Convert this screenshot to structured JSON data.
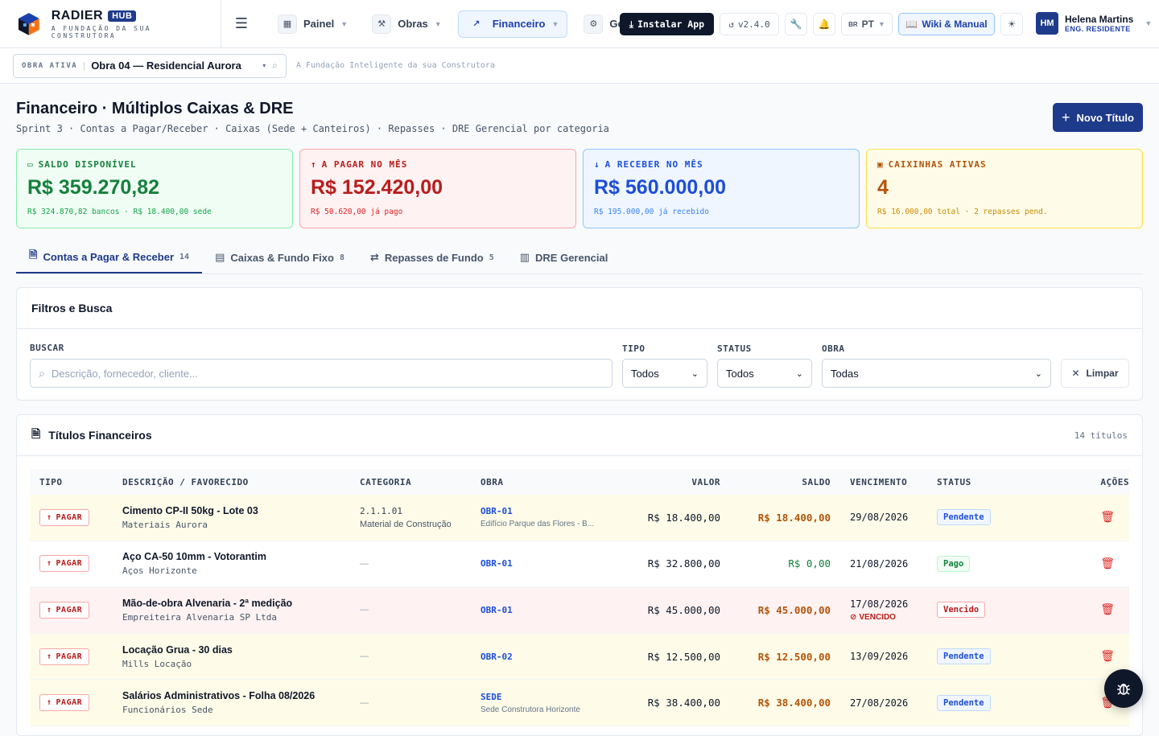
{
  "brand": {
    "name": "RADIER",
    "badge": "HUB",
    "tagline": "A FUNDAÇÃO DA SUA CONSTRUTORA"
  },
  "nav": [
    {
      "label": "Painel",
      "icon": "grid-icon"
    },
    {
      "label": "Obras",
      "icon": "hammer-icon"
    },
    {
      "label": "Financeiro",
      "icon": "chart-line-icon",
      "active": true
    },
    {
      "label": "Gestão",
      "icon": "gear-icon"
    }
  ],
  "toolbar": {
    "install_label": "Instalar App",
    "version": "v2.4.0",
    "lang_flag": "BR",
    "lang": "PT",
    "wiki_label": "Wiki & Manual"
  },
  "user": {
    "initials": "HM",
    "name": "Helena Martins",
    "role": "ENG. RESIDENTE"
  },
  "obra_bar": {
    "label": "OBRA ATIVA",
    "value": "Obra 04 — Residencial Aurora",
    "tagline": "A Fundação Inteligente da sua Construtora"
  },
  "page": {
    "title": "Financeiro · Múltiplos Caixas & DRE",
    "subtitle": "Sprint 3 · Contas a Pagar/Receber · Caixas (Sede + Canteiros) · Repasses · DRE Gerencial por categoria",
    "new_button": "Novo Título"
  },
  "kpis": [
    {
      "label": "SALDO DISPONÍVEL",
      "value": "R$ 359.270,82",
      "foot": "R$ 324.870,82 bancos · R$ 18.400,00 sede",
      "color": "#15803d"
    },
    {
      "label": "A PAGAR NO MÊS",
      "value": "R$ 152.420,00",
      "foot": "R$ 50.620,00 já pago",
      "color": "#b91c1c"
    },
    {
      "label": "A RECEBER NO MÊS",
      "value": "R$ 560.000,00",
      "foot": "R$ 195.000,00 já recebido",
      "color": "#1d4ed8"
    },
    {
      "label": "CAIXINHAS ATIVAS",
      "value": "4",
      "foot": "R$ 16.000,00 total · 2 repasses pend.",
      "color": "#b45309"
    }
  ],
  "tabs": [
    {
      "label": "Contas a Pagar & Receber",
      "count": "14",
      "active": true
    },
    {
      "label": "Caixas & Fundo Fixo",
      "count": "8"
    },
    {
      "label": "Repasses de Fundo",
      "count": "5"
    },
    {
      "label": "DRE Gerencial",
      "count": ""
    }
  ],
  "filters": {
    "title": "Filtros e Busca",
    "search_label": "BUSCAR",
    "search_placeholder": "Descrição, fornecedor, cliente...",
    "tipo_label": "TIPO",
    "tipo_value": "Todos",
    "status_label": "STATUS",
    "status_value": "Todos",
    "obra_label": "OBRA",
    "obra_value": "Todas",
    "clear_label": "Limpar"
  },
  "table": {
    "title": "Títulos Financeiros",
    "count": "14 títulos",
    "headers": [
      "TIPO",
      "DESCRIÇÃO / FAVORECIDO",
      "CATEGORIA",
      "OBRA",
      "VALOR",
      "SALDO",
      "VENCIMENTO",
      "STATUS",
      "AÇÕES"
    ],
    "rows": [
      {
        "tipo": "PAGAR",
        "desc": "Cimento CP-II 50kg - Lote 03",
        "fav": "Materiais Aurora",
        "cat_code": "2.1.1.01",
        "cat_name": "Material de Construção",
        "obra_code": "OBR-01",
        "obra_name": "Edifício Parque das Flores - B...",
        "valor": "R$ 18.400,00",
        "saldo": "R$ 18.400,00",
        "venc": "29/08/2026",
        "venc_flag": "",
        "status": "Pendente"
      },
      {
        "tipo": "PAGAR",
        "desc": "Aço CA-50 10mm - Votorantim",
        "fav": "Aços Horizonte",
        "cat_code": "—",
        "cat_name": "",
        "obra_code": "OBR-01",
        "obra_name": "",
        "valor": "R$ 32.800,00",
        "saldo": "R$ 0,00",
        "venc": "21/08/2026",
        "venc_flag": "",
        "status": "Pago"
      },
      {
        "tipo": "PAGAR",
        "desc": "Mão-de-obra Alvenaria - 2ª medição",
        "fav": "Empreiteira Alvenaria SP Ltda",
        "cat_code": "—",
        "cat_name": "",
        "obra_code": "OBR-01",
        "obra_name": "",
        "valor": "R$ 45.000,00",
        "saldo": "R$ 45.000,00",
        "venc": "17/08/2026",
        "venc_flag": "VENCIDO",
        "status": "Vencido"
      },
      {
        "tipo": "PAGAR",
        "desc": "Locação Grua - 30 dias",
        "fav": "Mills Locação",
        "cat_code": "—",
        "cat_name": "",
        "obra_code": "OBR-02",
        "obra_name": "",
        "valor": "R$ 12.500,00",
        "saldo": "R$ 12.500,00",
        "venc": "13/09/2026",
        "venc_flag": "",
        "status": "Pendente"
      },
      {
        "tipo": "PAGAR",
        "desc": "Salários Administrativos - Folha 08/2026",
        "fav": "Funcionários Sede",
        "cat_code": "—",
        "cat_name": "",
        "obra_code": "SEDE",
        "obra_name": "Sede Construtora Horizonte",
        "valor": "R$ 38.400,00",
        "saldo": "R$ 38.400,00",
        "venc": "27/08/2026",
        "venc_flag": "",
        "status": "Pendente"
      }
    ]
  }
}
